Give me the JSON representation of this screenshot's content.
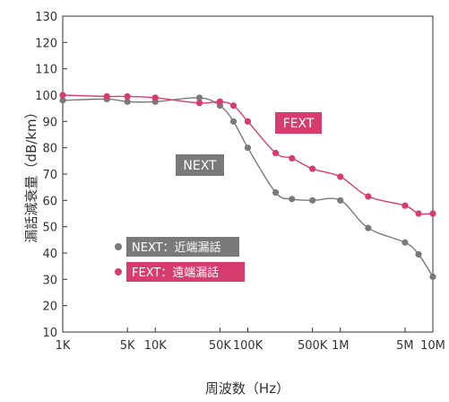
{
  "chart_data": {
    "type": "line",
    "xscale": "log",
    "xlim": [
      1000,
      10000000
    ],
    "ylim": [
      10,
      130
    ],
    "xlabel": "周波数（Hz）",
    "ylabel": "漏話減衰量（dB/km）",
    "x_ticks": [
      {
        "value": 1000,
        "label": "1K"
      },
      {
        "value": 5000,
        "label": "5K"
      },
      {
        "value": 10000,
        "label": "10K"
      },
      {
        "value": 50000,
        "label": "50K"
      },
      {
        "value": 100000,
        "label": "100K"
      },
      {
        "value": 500000,
        "label": "500K"
      },
      {
        "value": 1000000,
        "label": "1M"
      },
      {
        "value": 5000000,
        "label": "5M"
      },
      {
        "value": 10000000,
        "label": "10M"
      }
    ],
    "y_ticks": [
      10,
      20,
      30,
      40,
      50,
      60,
      70,
      80,
      90,
      100,
      110,
      120,
      130
    ],
    "grid": false,
    "legend_position": "lower-left",
    "series": [
      {
        "name": "NEXT：近端漏話",
        "callout": "NEXT",
        "color": "#7a7a7a",
        "x": [
          1000,
          3000,
          5000,
          10000,
          30000,
          50000,
          70000,
          100000,
          200000,
          300000,
          500000,
          1000000,
          2000000,
          5000000,
          7000000,
          10000000
        ],
        "y": [
          98,
          98.5,
          97.5,
          97.5,
          99,
          96,
          90,
          80,
          63,
          60.5,
          60,
          60,
          49.5,
          44,
          39.5,
          31
        ]
      },
      {
        "name": "FEXT：遠端漏話",
        "callout": "FEXT",
        "color": "#d63c6e",
        "x": [
          1000,
          3000,
          5000,
          10000,
          30000,
          50000,
          70000,
          100000,
          200000,
          300000,
          500000,
          1000000,
          2000000,
          5000000,
          7000000,
          10000000
        ],
        "y": [
          100,
          99.5,
          99.5,
          99,
          97,
          97.5,
          96,
          90,
          78,
          76,
          72,
          69,
          61.5,
          58,
          55,
          55
        ]
      }
    ]
  }
}
